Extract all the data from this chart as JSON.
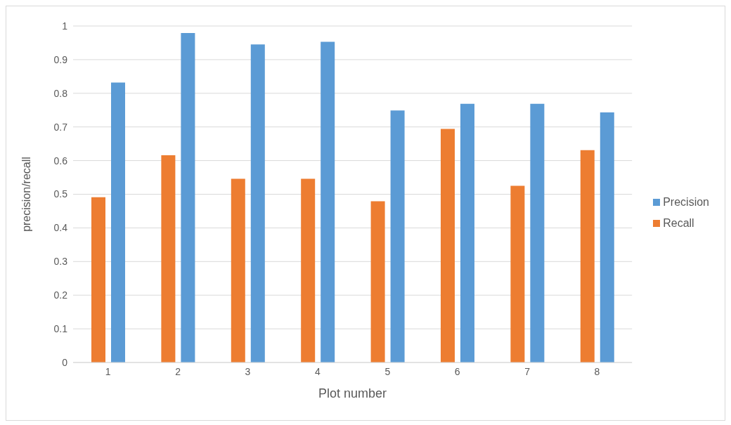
{
  "chart_data": {
    "type": "bar",
    "xlabel": "Plot number",
    "ylabel": "precision/recall",
    "categories": [
      "1",
      "2",
      "3",
      "4",
      "5",
      "6",
      "7",
      "8"
    ],
    "series": [
      {
        "name": "Recall",
        "color": "#ed7d31",
        "values": [
          0.491,
          0.616,
          0.546,
          0.546,
          0.479,
          0.694,
          0.525,
          0.631
        ]
      },
      {
        "name": "Precision",
        "color": "#5b9bd5",
        "values": [
          0.832,
          0.979,
          0.945,
          0.953,
          0.749,
          0.769,
          0.769,
          0.743
        ]
      }
    ],
    "ylim": [
      0,
      1
    ],
    "yticks": [
      0,
      0.1,
      0.2,
      0.3,
      0.4,
      0.5,
      0.6,
      0.7,
      0.8,
      0.9,
      1
    ],
    "grid": "y",
    "legend": "right"
  }
}
